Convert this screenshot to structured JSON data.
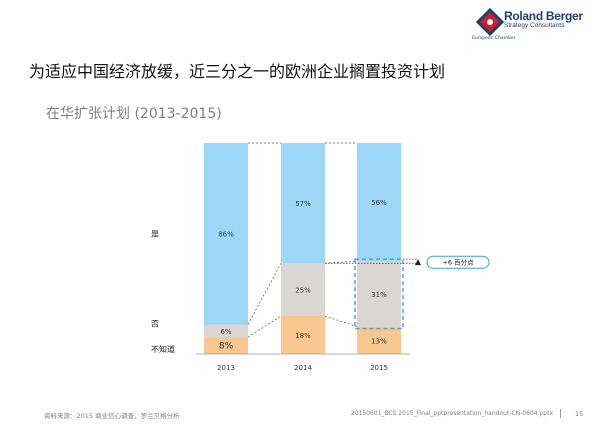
{
  "header": {
    "brand_name": "Roland Berger",
    "brand_sub": "Strategy Consultants",
    "chamber_name": "European Chamber"
  },
  "page_title": "为适应中国经济放缓，近三分之一的欧洲企业搁置投资计划",
  "chart_data": {
    "type": "bar",
    "stacked": true,
    "subtitle": "在华扩张计划 (2013-2015)",
    "categories": [
      "2013",
      "2014",
      "2015"
    ],
    "series": [
      {
        "name": "不知道",
        "values": [
          8,
          18,
          13
        ],
        "labels": [
          "8%",
          "18%",
          "13%"
        ],
        "color": "#f9c790"
      },
      {
        "name": "否",
        "values": [
          6,
          25,
          31
        ],
        "labels": [
          "6%",
          "25%",
          "31%"
        ],
        "color": "#dcd6d2"
      },
      {
        "name": "是",
        "values": [
          86,
          57,
          56
        ],
        "labels": [
          "86%",
          "57%",
          "56%"
        ],
        "color": "#9dd7f7"
      }
    ],
    "ylim": [
      0,
      100
    ],
    "annotation": {
      "text": "+6 百分点",
      "category": "2015"
    },
    "highlight": {
      "category": "2015",
      "series": "否"
    }
  },
  "footer": {
    "source": "资料来源：2015 商业信心调查，罗兰贝格分析",
    "file": "20150601_BCS 2015_Final_pptpresentation_handout-CN-0604.pptx",
    "page": "15"
  },
  "colors": {
    "accent_dashed": "#3aa3c9",
    "brand_blue": "#1f3f73",
    "brand_red": "#cc1f2f"
  }
}
